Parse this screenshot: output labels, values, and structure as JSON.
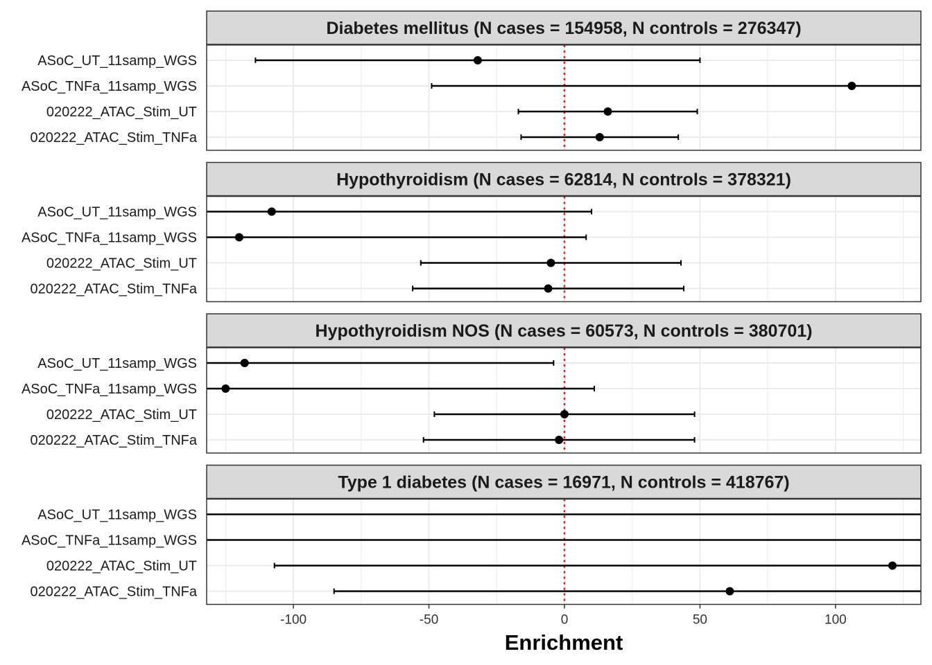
{
  "chart_data": {
    "type": "forest",
    "xlabel": "Enrichment",
    "xlim": [
      -132,
      131.5
    ],
    "xticks": [
      -100,
      -50,
      0,
      50,
      100
    ],
    "xtick_labels": [
      "-100",
      "-50",
      "0",
      "50",
      "100"
    ],
    "reference_line": {
      "x": 0,
      "color": "#e41a1c",
      "style": "dotted"
    },
    "grid": true,
    "categories": [
      "ASoC_UT_11samp_WGS",
      "ASoC_TNFa_11samp_WGS",
      "020222_ATAC_Stim_UT",
      "020222_ATAC_Stim_TNFa"
    ],
    "panels": [
      {
        "title": "Diabetes mellitus (N cases = 154958, N controls = 276347)",
        "rows": [
          {
            "label": "ASoC_UT_11samp_WGS",
            "estimate": -32,
            "lower": -114,
            "upper": 50
          },
          {
            "label": "ASoC_TNFa_11samp_WGS",
            "estimate": 106,
            "lower": -49,
            "upper": 260
          },
          {
            "label": "020222_ATAC_Stim_UT",
            "estimate": 16,
            "lower": -17,
            "upper": 49
          },
          {
            "label": "020222_ATAC_Stim_TNFa",
            "estimate": 13,
            "lower": -16,
            "upper": 42
          }
        ]
      },
      {
        "title": "Hypothyroidism (N cases = 62814, N controls = 378321)",
        "rows": [
          {
            "label": "ASoC_UT_11samp_WGS",
            "estimate": -108,
            "lower": -225,
            "upper": 10
          },
          {
            "label": "ASoC_TNFa_11samp_WGS",
            "estimate": -120,
            "lower": -250,
            "upper": 8
          },
          {
            "label": "020222_ATAC_Stim_UT",
            "estimate": -5,
            "lower": -53,
            "upper": 43
          },
          {
            "label": "020222_ATAC_Stim_TNFa",
            "estimate": -6,
            "lower": -56,
            "upper": 44
          }
        ]
      },
      {
        "title": "Hypothyroidism NOS (N cases = 60573, N controls = 380701)",
        "rows": [
          {
            "label": "ASoC_UT_11samp_WGS",
            "estimate": -118,
            "lower": -233,
            "upper": -4
          },
          {
            "label": "ASoC_TNFa_11samp_WGS",
            "estimate": -125,
            "lower": -262,
            "upper": 11
          },
          {
            "label": "020222_ATAC_Stim_UT",
            "estimate": 0,
            "lower": -48,
            "upper": 48
          },
          {
            "label": "020222_ATAC_Stim_TNFa",
            "estimate": -2,
            "lower": -52,
            "upper": 48
          }
        ]
      },
      {
        "title": "Type 1 diabetes (N cases = 16971, N controls = 418767)",
        "rows": [
          {
            "label": "ASoC_UT_11samp_WGS",
            "estimate": null,
            "lower": -500,
            "upper": 500
          },
          {
            "label": "ASoC_TNFa_11samp_WGS",
            "estimate": null,
            "lower": -500,
            "upper": 500
          },
          {
            "label": "020222_ATAC_Stim_UT",
            "estimate": 121,
            "lower": -107,
            "upper": 350
          },
          {
            "label": "020222_ATAC_Stim_TNFa",
            "estimate": 61,
            "lower": -85,
            "upper": 208
          }
        ]
      }
    ]
  },
  "colors": {
    "strip_fill": "#d9d9d9",
    "grid": "#ebebeb",
    "panel_border": "#333333",
    "point": "#000000",
    "refline": "#e41a1c"
  }
}
